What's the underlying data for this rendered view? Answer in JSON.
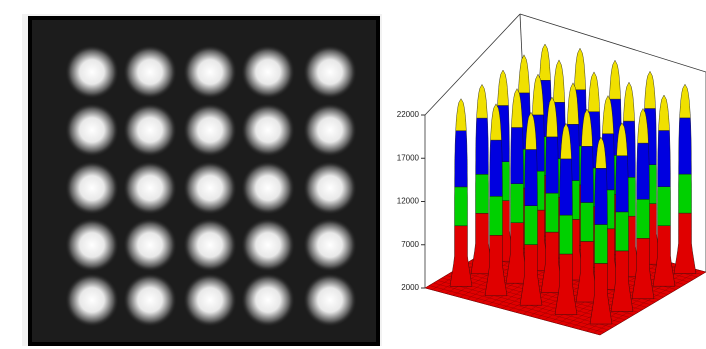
{
  "chart_data": {
    "type": "surface3d",
    "zlim": [
      2000,
      22000
    ],
    "zticks": [
      2000,
      7000,
      12000,
      17000,
      22000
    ],
    "peaks": [
      [
        24200,
        24800,
        24500,
        24300,
        23900
      ],
      [
        24400,
        24900,
        24600,
        24500,
        24100
      ],
      [
        24100,
        24700,
        24800,
        24400,
        24000
      ],
      [
        23900,
        24500,
        24600,
        24300,
        23800
      ],
      [
        23700,
        24200,
        24300,
        24100,
        23600
      ]
    ],
    "floor_color": "#e00000",
    "bands": [
      {
        "from": 2000,
        "to": 9000,
        "color": "#e00000"
      },
      {
        "from": 9000,
        "to": 13500,
        "color": "#00d000"
      },
      {
        "from": 13500,
        "to": 20000,
        "color": "#0000e0"
      },
      {
        "from": 20000,
        "to": 26000,
        "color": "#f0e000"
      }
    ]
  }
}
